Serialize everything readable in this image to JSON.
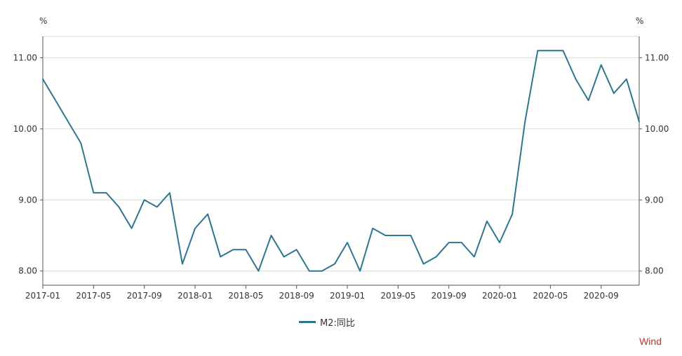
{
  "chart_data": {
    "type": "line",
    "title": "",
    "xlabel": "",
    "ylabel": "%",
    "y_unit_left": "%",
    "y_unit_right": "%",
    "ylim": [
      7.8,
      11.3
    ],
    "yticks": [
      "8.00",
      "9.00",
      "10.00",
      "11.00"
    ],
    "xticks": [
      "2017-01",
      "2017-05",
      "2017-09",
      "2018-01",
      "2018-05",
      "2018-09",
      "2019-01",
      "2019-05",
      "2019-09",
      "2020-01",
      "2020-05",
      "2020-09"
    ],
    "grid": true,
    "legend_position": "bottom",
    "series": [
      {
        "name": "M2:同比",
        "color": "#2e7590",
        "x": [
          "2017-01",
          "2017-02",
          "2017-03",
          "2017-04",
          "2017-05",
          "2017-06",
          "2017-07",
          "2017-08",
          "2017-09",
          "2017-10",
          "2017-11",
          "2017-12",
          "2018-01",
          "2018-02",
          "2018-03",
          "2018-04",
          "2018-05",
          "2018-06",
          "2018-07",
          "2018-08",
          "2018-09",
          "2018-10",
          "2018-11",
          "2018-12",
          "2019-01",
          "2019-02",
          "2019-03",
          "2019-04",
          "2019-05",
          "2019-06",
          "2019-07",
          "2019-08",
          "2019-09",
          "2019-10",
          "2019-11",
          "2019-12",
          "2020-01",
          "2020-02",
          "2020-03",
          "2020-04",
          "2020-05",
          "2020-06",
          "2020-07",
          "2020-08",
          "2020-09",
          "2020-10",
          "2020-11",
          "2020-12"
        ],
        "values": [
          10.7,
          10.4,
          10.1,
          9.8,
          9.1,
          9.1,
          8.9,
          8.6,
          9.0,
          8.9,
          9.1,
          8.1,
          8.6,
          8.8,
          8.2,
          8.3,
          8.3,
          8.0,
          8.5,
          8.2,
          8.3,
          8.0,
          8.0,
          8.1,
          8.4,
          8.0,
          8.6,
          8.5,
          8.5,
          8.5,
          8.1,
          8.2,
          8.4,
          8.4,
          8.2,
          8.7,
          8.4,
          8.8,
          10.1,
          11.1,
          11.1,
          11.1,
          10.7,
          10.4,
          10.9,
          10.5,
          10.7,
          10.1
        ]
      }
    ]
  },
  "legend": {
    "label": "M2:同比"
  },
  "watermark": "Wind"
}
